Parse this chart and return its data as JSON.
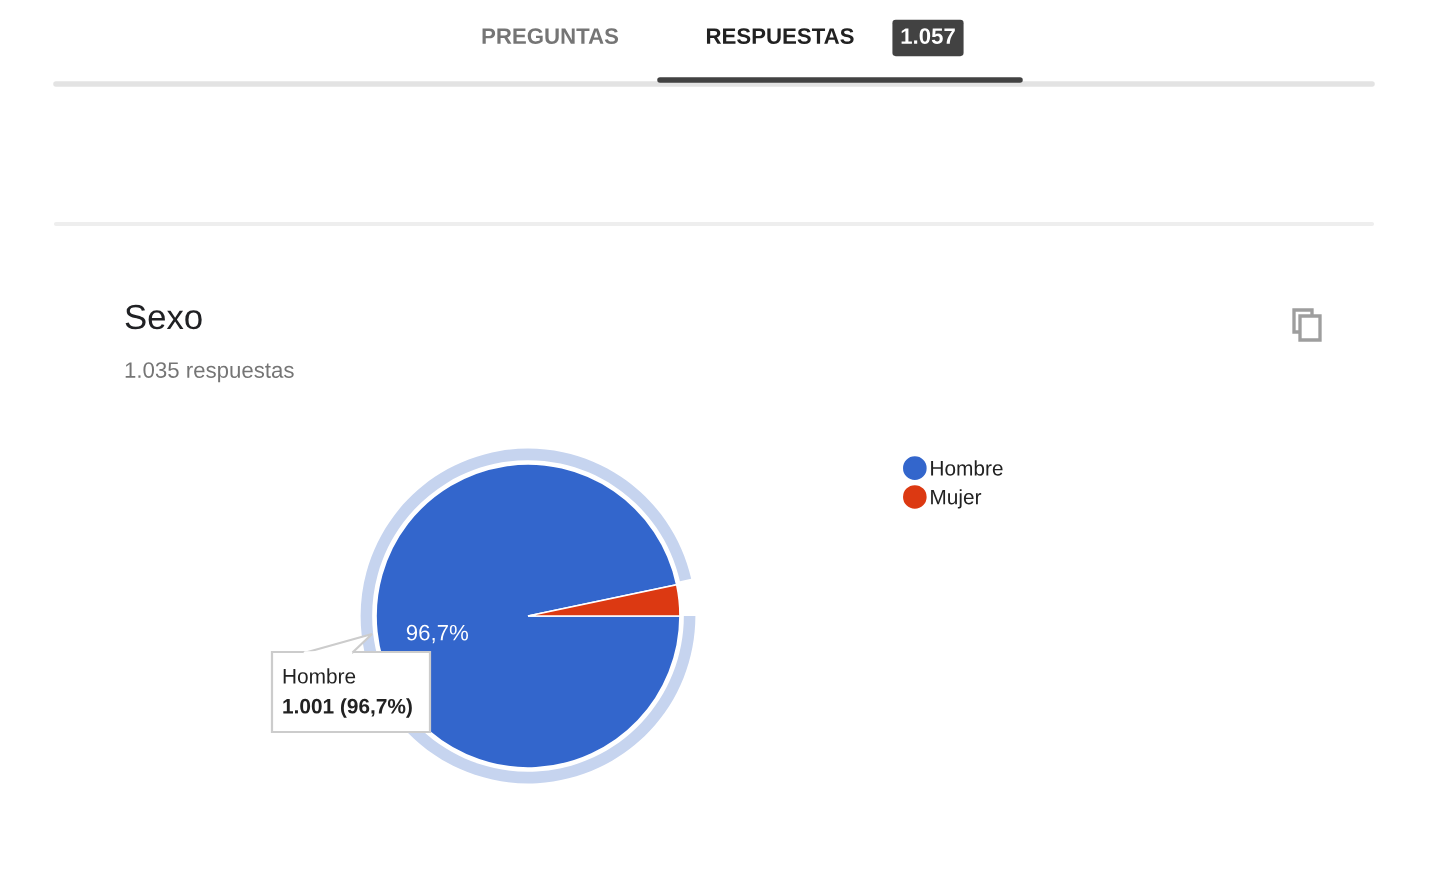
{
  "chart_data": {
    "type": "pie",
    "title": "Sexo",
    "subtitle": "1.035 respuestas",
    "categories": [
      "Hombre",
      "Mujer"
    ],
    "values": [
      96.7,
      3.3
    ],
    "colors": [
      "#3366cc",
      "#dc3912"
    ],
    "value_labels": [
      "96,7%",
      null
    ],
    "legend": "top right",
    "annotations": [
      "PREGUNTAS",
      "RESPUESTAS",
      "1.057",
      "Hombre",
      "1.001 (96,7%)"
    ]
  }
}
